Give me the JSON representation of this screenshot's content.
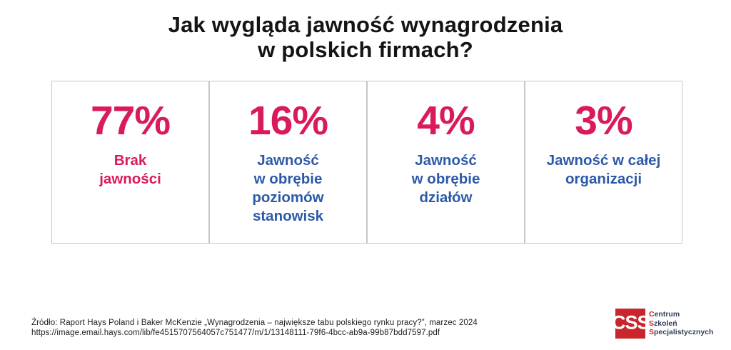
{
  "title": {
    "line1": "Jak wygląda jawność wynagrodzenia",
    "line2": "w polskich firmach?"
  },
  "chart_data": {
    "type": "table",
    "title": "Jak wygląda jawność wynagrodzenia w polskich firmach?",
    "categories": [
      "Brak jawności",
      "Jawność w obrębie poziomów stanowisk",
      "Jawność w obrębie działów",
      "Jawność w całej organizacji"
    ],
    "values": [
      77,
      16,
      4,
      3
    ],
    "unit": "%"
  },
  "cards": [
    {
      "value": "77%",
      "label": "Brak\njawności"
    },
    {
      "value": "16%",
      "label": "Jawność\nw obrębie\npoziomów\nstanowisk"
    },
    {
      "value": "4%",
      "label": "Jawność\nw obrębie\ndziałów"
    },
    {
      "value": "3%",
      "label": "Jawność w całej\norganizacji"
    }
  ],
  "footer": {
    "source_line1": "Źródło: Raport Hays Poland i Baker McKenzie „Wynagrodzenia – największe tabu polskiego rynku pracy?”, marzec 2024",
    "source_line2": "https://image.email.hays.com/lib/fe4515707564057c751477/m/1/13148111-79f6-4bcc-ab9a-99b87bdd7597.pdf"
  },
  "logo": {
    "acronym": "CSS",
    "line1_initial": "C",
    "line1_rest": "entrum",
    "line2_initial": "S",
    "line2_rest": "zkoleń",
    "line3_initial": "S",
    "line3_rest": "pecjalistycznych"
  },
  "colors": {
    "accent_pink": "#d91a5b",
    "accent_blue": "#2d5aa8",
    "logo_red": "#c9252c",
    "logo_navy": "#33415c",
    "card_border": "#c6c6c6",
    "title_text": "#141414"
  }
}
